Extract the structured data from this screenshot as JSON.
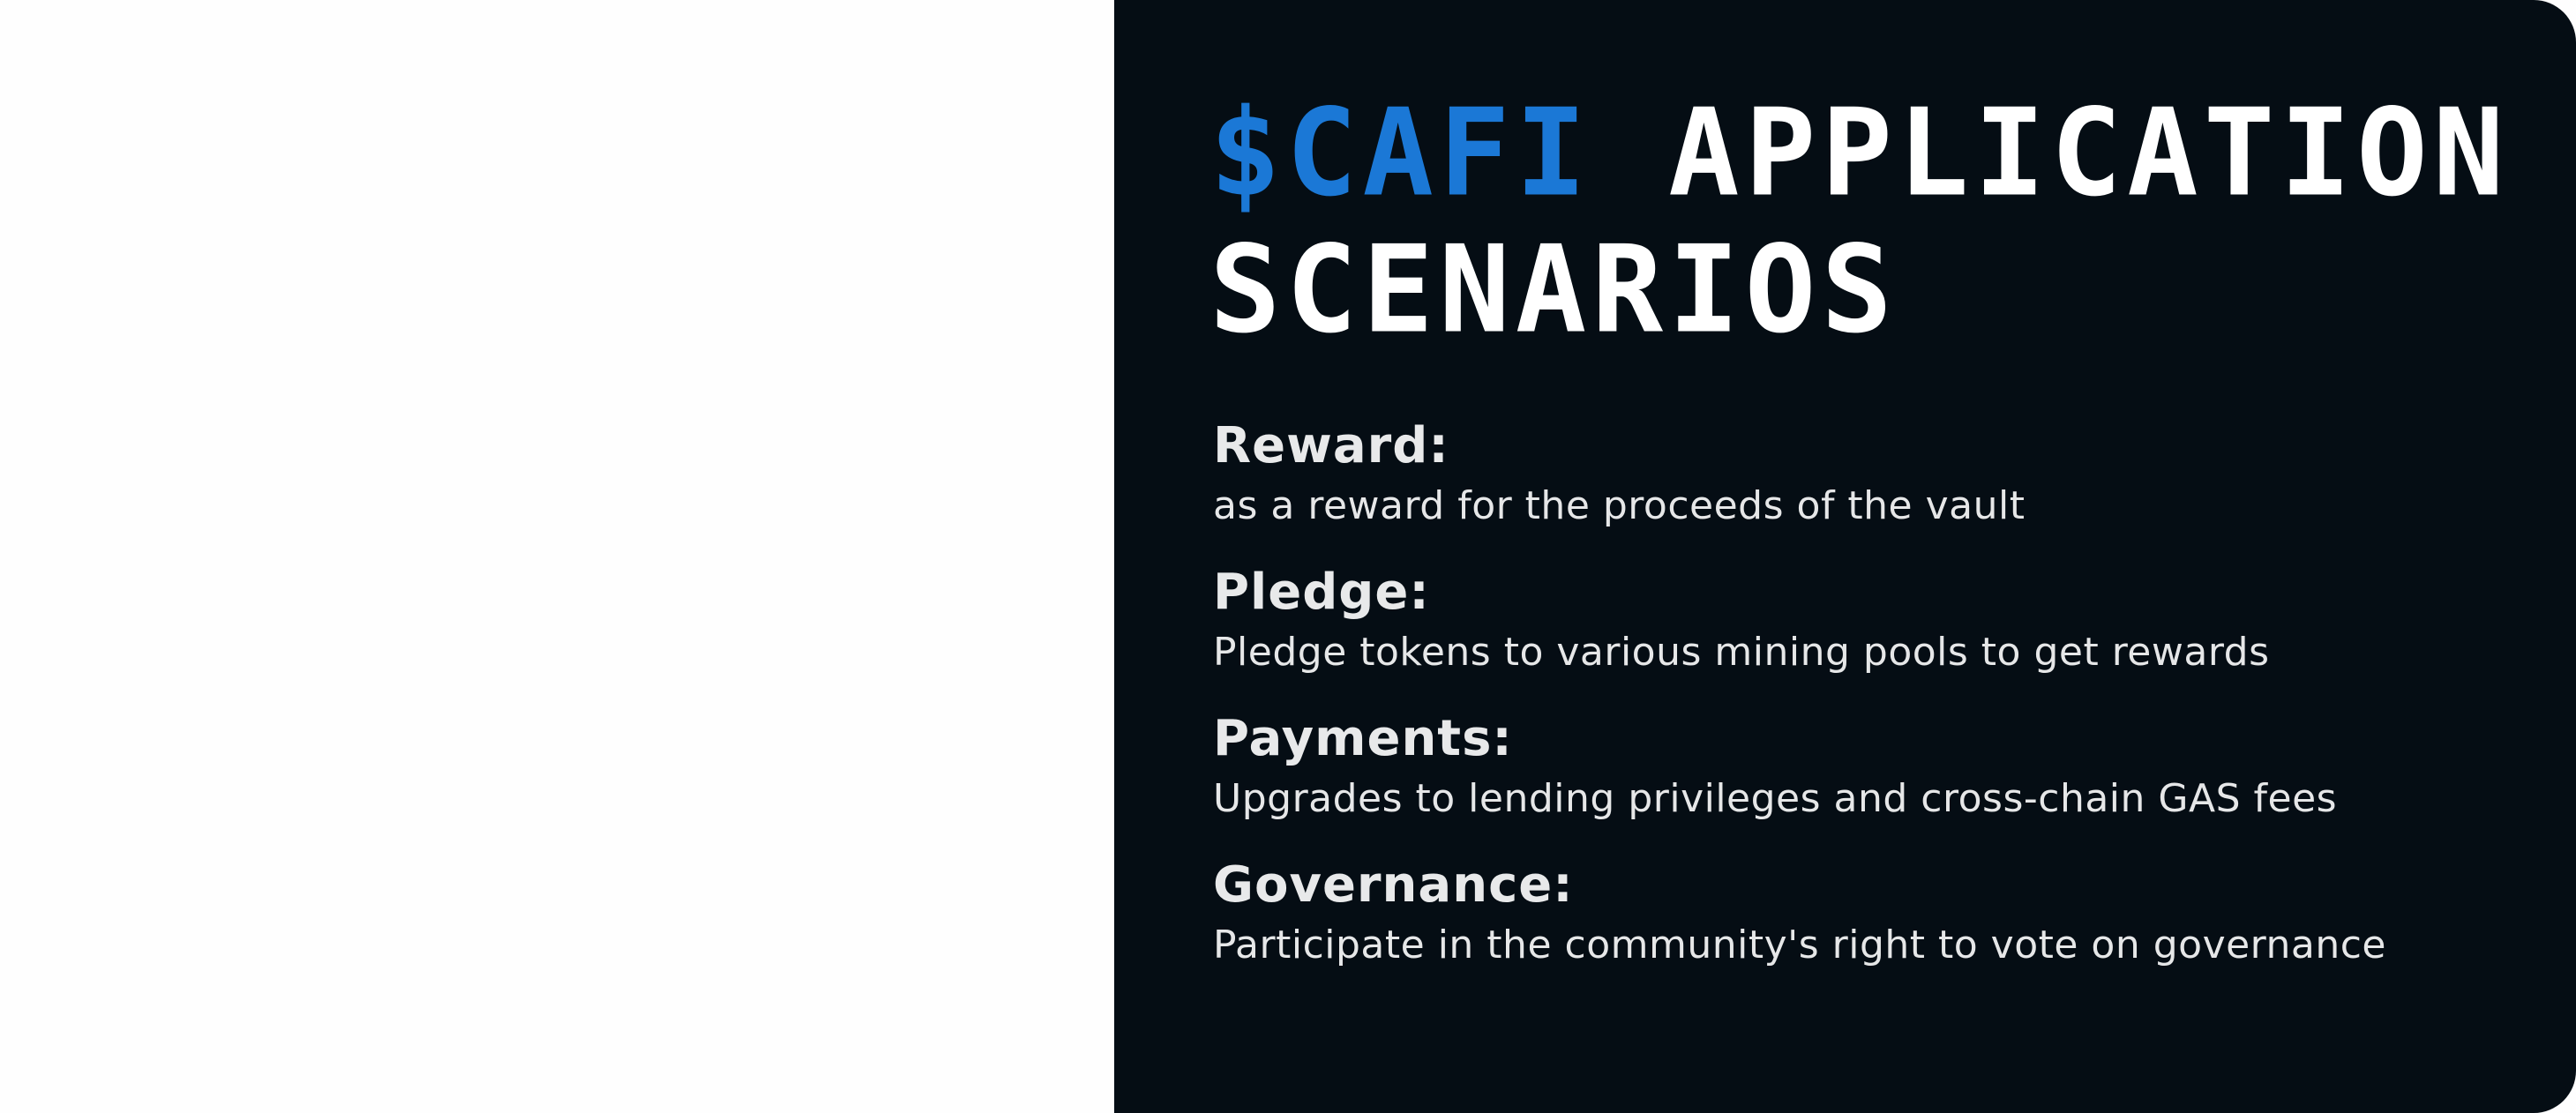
{
  "title": {
    "accent": "$CAFI",
    "rest": " APPLICATION SCENARIOS"
  },
  "scenarios": [
    {
      "label": "Reward:",
      "description": "as a reward for the proceeds of the vault"
    },
    {
      "label": "Pledge:",
      "description": "Pledge tokens to various mining pools to get rewards"
    },
    {
      "label": "Payments:",
      "description": "Upgrades to lending privileges and cross-chain GAS fees"
    },
    {
      "label": "Governance:",
      "description": "Participate in the community's right to vote on governance"
    }
  ],
  "colors": {
    "card_background": "#050d14",
    "accent": "#1b78d6",
    "text": "#ffffff",
    "page_background": "#fefefe"
  }
}
